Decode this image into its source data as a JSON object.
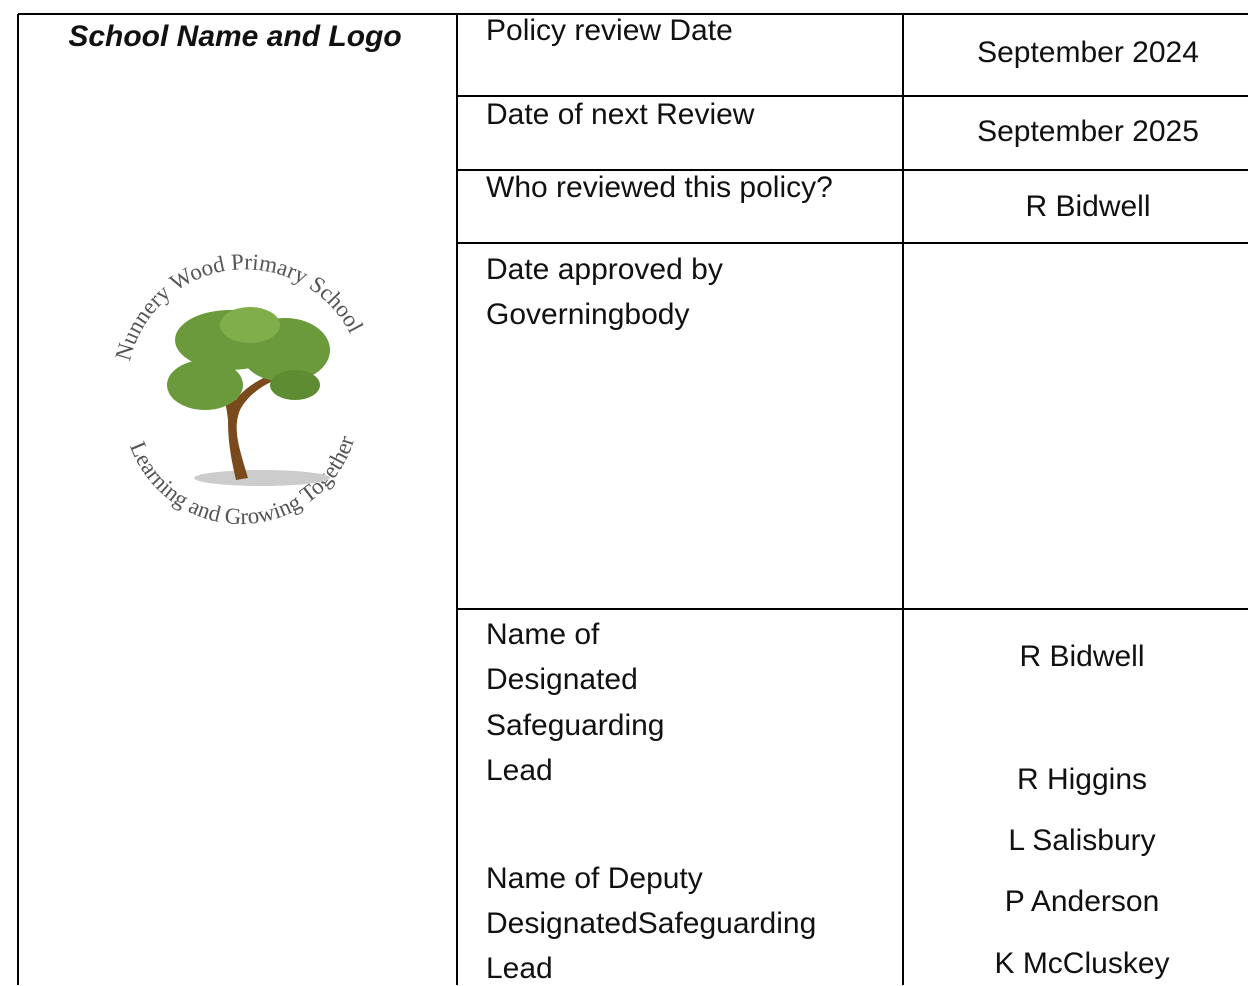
{
  "header": {
    "title": "School Name and Logo"
  },
  "logo": {
    "top_text": "Nunnery Wood Primary School",
    "bottom_text": "Learning and Growing Together"
  },
  "table": {
    "rows": [
      {
        "label": [
          "Policy review Date"
        ],
        "value": "September 2024"
      },
      {
        "label": [
          "Date of next Review"
        ],
        "value": "September 2025"
      },
      {
        "label": [
          "Who reviewed this policy?"
        ],
        "value": "R Bidwell"
      },
      {
        "label": [
          "Date approved by",
          "Governingbody"
        ]
      },
      {
        "dsl_label": [
          "Name of",
          "Designated",
          "Safeguarding",
          "Lead"
        ],
        "dsl_name": "R Bidwell",
        "deputy_label": [
          "Name of Deputy",
          "DesignatedSafeguarding",
          "Lead"
        ],
        "deputy_names": [
          "R Higgins",
          "L Salisbury",
          "P Anderson",
          "K McCluskey"
        ]
      }
    ]
  }
}
